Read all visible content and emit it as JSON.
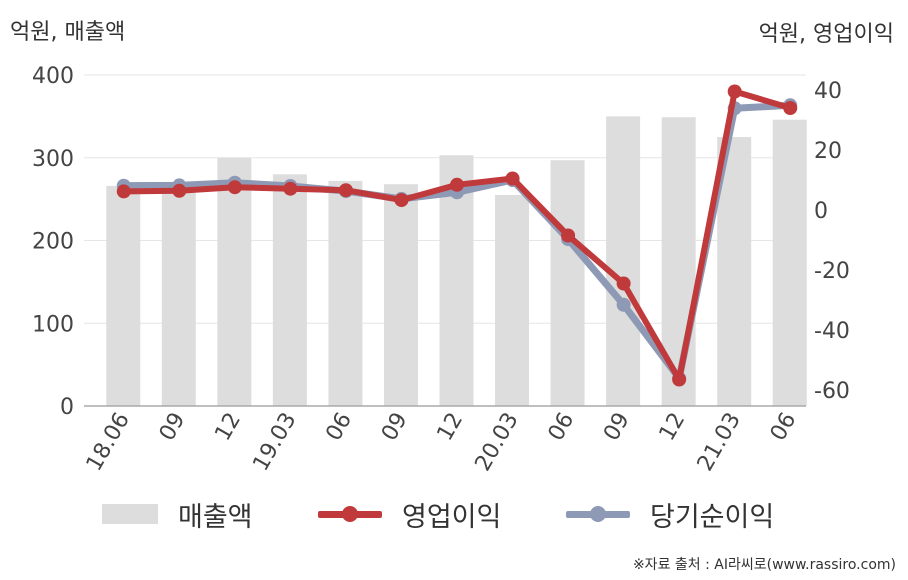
{
  "axis_units": {
    "left": "억원, 매출액",
    "right": "억원, 영업이익"
  },
  "legend": {
    "revenue": "매출액",
    "operating_profit": "영업이익",
    "net_income": "당기순이익"
  },
  "source": "※자료 출처 : AI라씨로(www.rassiro.com)",
  "colors": {
    "revenue_bar": "#dddddd",
    "operating_profit": "#c0393b",
    "net_income": "#8e9ab5",
    "grid": "#e6e6e6",
    "axis": "#aaaaaa"
  },
  "chart_data": {
    "type": "bar",
    "categories": [
      "18.06",
      "09",
      "12",
      "19.03",
      "06",
      "09",
      "12",
      "20.03",
      "06",
      "09",
      "12",
      "21.03",
      "06"
    ],
    "series": [
      {
        "name": "매출액",
        "type": "bar",
        "axis": "left",
        "values": [
          266,
          265,
          300,
          280,
          272,
          268,
          303,
          255,
          297,
          350,
          349,
          325,
          346
        ]
      },
      {
        "name": "영업이익",
        "type": "line",
        "axis": "right",
        "values": [
          6.2,
          6.4,
          7.6,
          7.1,
          6.6,
          3.3,
          8.4,
          10.5,
          -8.5,
          -24.5,
          -56.5,
          39.5,
          34.0
        ]
      },
      {
        "name": "당기순이익",
        "type": "line",
        "axis": "right",
        "values": [
          8.1,
          8.2,
          9.1,
          8.0,
          6.3,
          3.7,
          5.9,
          10.0,
          -9.7,
          -31.6,
          -56.1,
          33.9,
          34.9
        ]
      }
    ],
    "y_left": {
      "min": 0,
      "max": 400,
      "ticks": [
        0,
        100,
        200,
        300,
        400
      ],
      "tick_labels": [
        "0",
        "100",
        "200",
        "300",
        "400"
      ]
    },
    "y_right": {
      "min": -66,
      "max": 45,
      "ticks": [
        -60,
        -40,
        -20,
        0,
        20,
        40
      ],
      "tick_labels": [
        "-60",
        "-40",
        "-20",
        "0",
        "20",
        "40"
      ]
    },
    "grid": true,
    "legend_position": "bottom"
  }
}
